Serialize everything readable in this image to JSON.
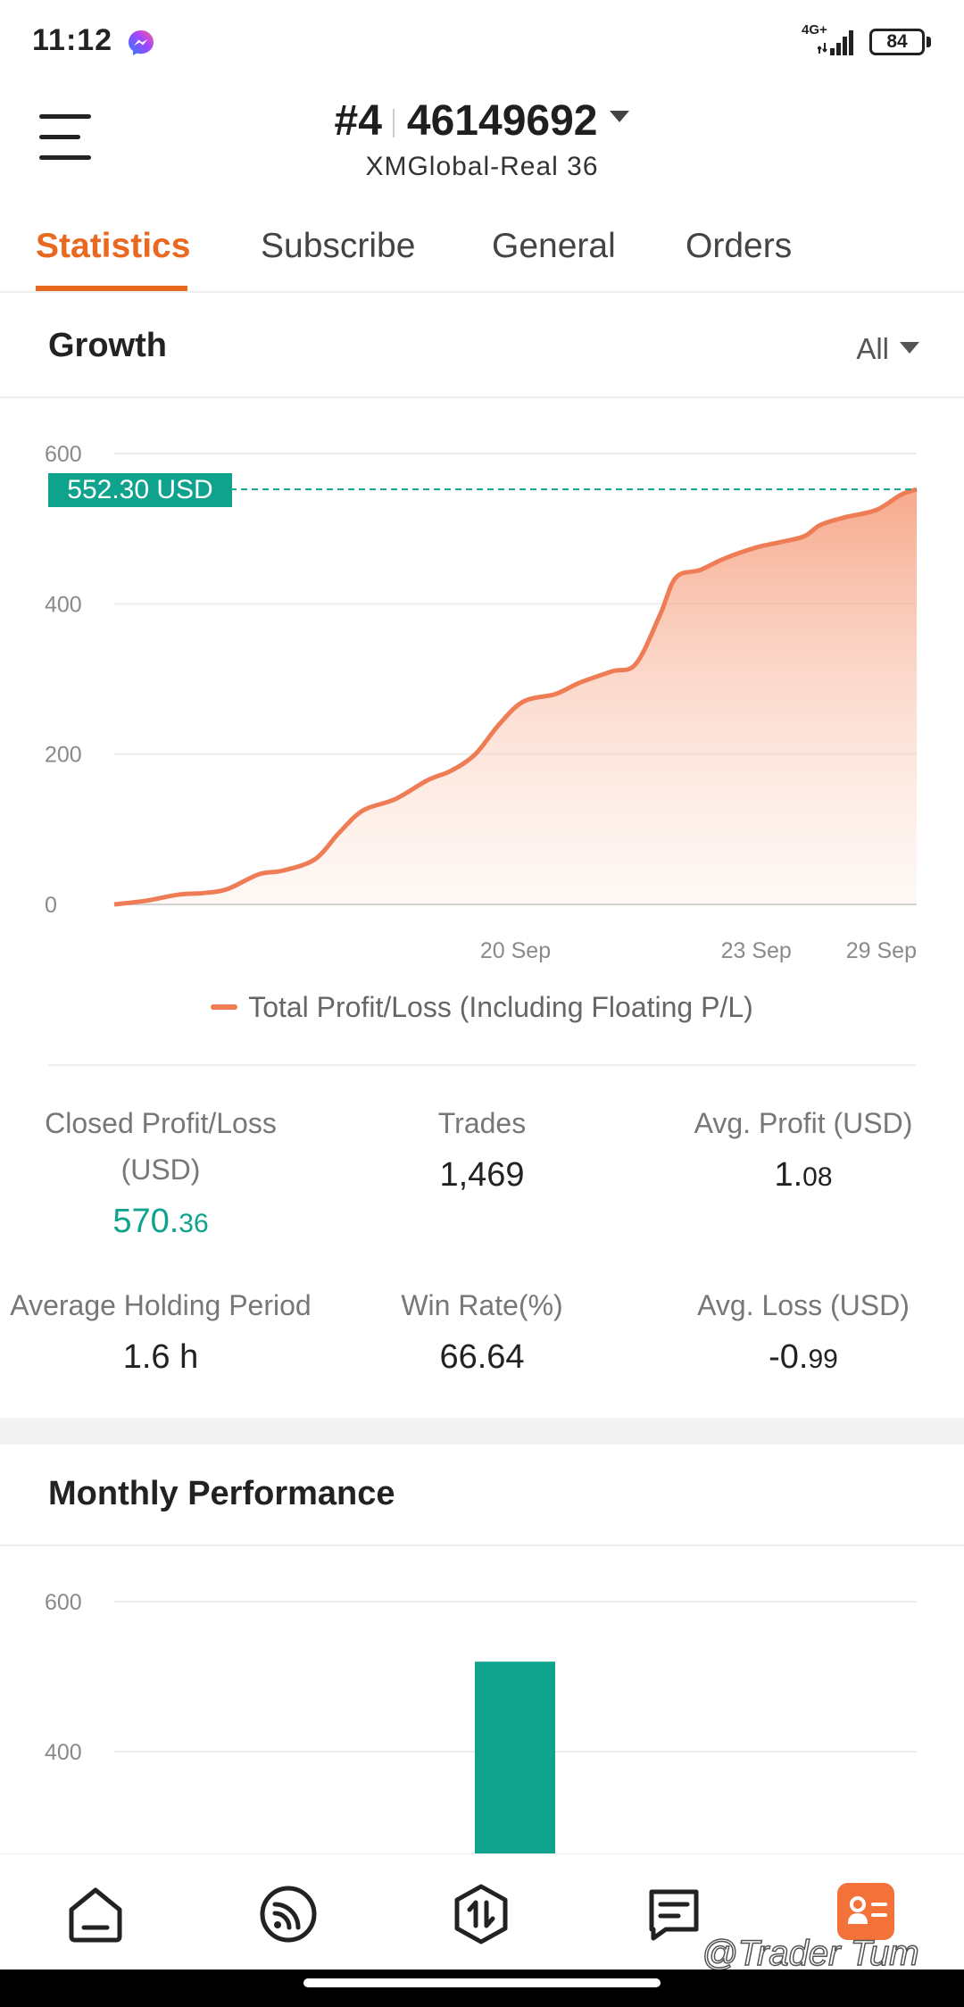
{
  "status_bar": {
    "time": "11:12",
    "network": "4G+",
    "battery": "84",
    "icons": [
      "messenger-icon",
      "signal-icon",
      "battery-icon"
    ]
  },
  "header": {
    "account_index": "#4",
    "account_number": "46149692",
    "server": "XMGlobal-Real 36",
    "icons": [
      "menu-icon",
      "caret-down-icon"
    ]
  },
  "tabs": [
    {
      "label": "Statistics",
      "active": true
    },
    {
      "label": "Subscribe",
      "active": false
    },
    {
      "label": "General",
      "active": false
    },
    {
      "label": "Orders",
      "active": false
    }
  ],
  "growth": {
    "title": "Growth",
    "range_label": "All",
    "current_value_tag": "552.30 USD",
    "legend_label": "Total Profit/Loss (Including Floating P/L)"
  },
  "stats": {
    "closed_pl_label": "Closed Profit/Loss (USD)",
    "closed_pl_int": "570.",
    "closed_pl_dec": "36",
    "trades_label": "Trades",
    "trades_value": "1,469",
    "avg_profit_label": "Avg. Profit (USD)",
    "avg_profit_int": "1.",
    "avg_profit_dec": "08",
    "holding_label": "Average Holding Period",
    "holding_value": "1.6 h",
    "win_rate_label": "Win Rate(%)",
    "win_rate_value": "66.64",
    "avg_loss_label": "Avg. Loss (USD)",
    "avg_loss_int": "-0.",
    "avg_loss_dec": "99"
  },
  "monthly": {
    "title": "Monthly Performance"
  },
  "bottom_nav": {
    "items": [
      "home-icon",
      "feed-icon",
      "trade-icon",
      "news-icon",
      "account-card-icon"
    ],
    "active_index": 4
  },
  "watermark": "@Trader Tum",
  "colors": {
    "accent": "#e8691f",
    "line": "#ee7d55",
    "green": "#0fa38d"
  },
  "chart_data": [
    {
      "type": "area",
      "title": "Growth",
      "ylim": [
        0,
        600
      ],
      "y_ticks": [
        0,
        200,
        400,
        600
      ],
      "x_tick_labels": [
        {
          "label": "20 Sep",
          "at": 5.0
        },
        {
          "label": "23 Sep",
          "at": 8.0
        },
        {
          "label": "29 Sep",
          "at": 10.0
        }
      ],
      "xlim": [
        0,
        10
      ],
      "current_value": 552.3,
      "grid": true,
      "legend_position": "bottom",
      "series": [
        {
          "name": "Total Profit/Loss (Including Floating P/L)",
          "x": [
            0,
            0.4,
            0.8,
            1.1,
            1.4,
            1.8,
            2.1,
            2.5,
            2.8,
            3.1,
            3.5,
            3.9,
            4.2,
            4.5,
            4.8,
            5.1,
            5.5,
            5.8,
            6.2,
            6.5,
            6.8,
            7.0,
            7.3,
            7.6,
            8.0,
            8.3,
            8.6,
            8.8,
            9.1,
            9.5,
            9.8,
            10.0
          ],
          "values": [
            0,
            5,
            13,
            15,
            20,
            40,
            45,
            60,
            95,
            125,
            140,
            165,
            178,
            200,
            240,
            270,
            280,
            295,
            310,
            320,
            385,
            435,
            445,
            460,
            475,
            482,
            490,
            505,
            515,
            525,
            545,
            552.3
          ]
        }
      ]
    },
    {
      "type": "bar",
      "title": "Monthly Performance",
      "ylim": [
        0,
        600
      ],
      "y_ticks": [
        400,
        600
      ],
      "grid": true,
      "categories": [
        ""
      ],
      "values": [
        520
      ]
    }
  ]
}
